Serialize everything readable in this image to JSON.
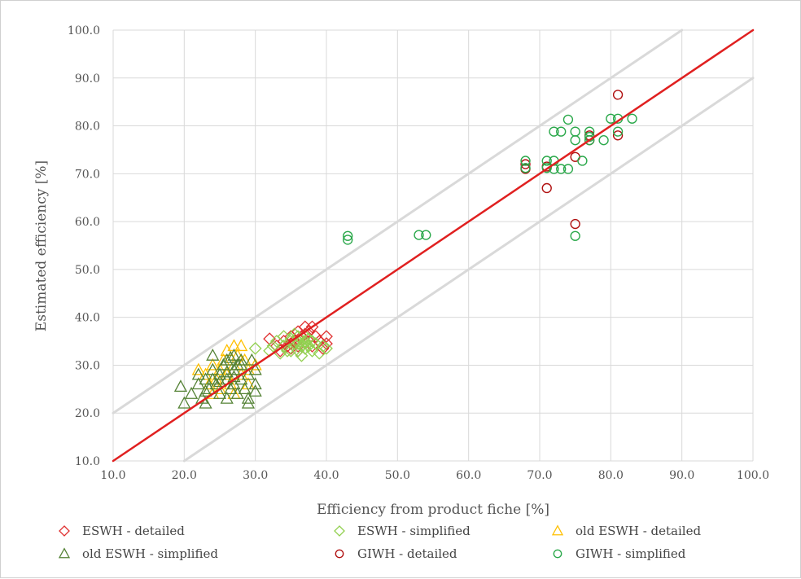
{
  "chart_data": {
    "type": "scatter",
    "title": "",
    "xlabel": "Efficiency from product fiche [%]",
    "ylabel": "Estimated efficiency [%]",
    "xlim": [
      10,
      100
    ],
    "ylim": [
      10,
      100
    ],
    "x_ticks": [
      "10.0",
      "20.0",
      "30.0",
      "40.0",
      "50.0",
      "60.0",
      "70.0",
      "80.0",
      "90.0",
      "100.0"
    ],
    "y_ticks": [
      "10.0",
      "20.0",
      "30.0",
      "40.0",
      "50.0",
      "60.0",
      "70.0",
      "80.0",
      "90.0",
      "100.0"
    ],
    "grid": true,
    "legend_position": "bottom",
    "reference_lines": [
      {
        "name": "identity",
        "color": "#e02020",
        "points": [
          [
            10,
            10
          ],
          [
            100,
            100
          ]
        ]
      },
      {
        "name": "upper-band",
        "color": "#d9d9d9",
        "points": [
          [
            10,
            20
          ],
          [
            90,
            100
          ]
        ]
      },
      {
        "name": "lower-band",
        "color": "#d9d9d9",
        "points": [
          [
            20,
            10
          ],
          [
            100,
            90
          ]
        ]
      }
    ],
    "series": [
      {
        "name": "ESWH - detailed",
        "marker": "diamond",
        "color": "#e03030",
        "points": [
          [
            32,
            35.5
          ],
          [
            33,
            34
          ],
          [
            33.5,
            33
          ],
          [
            34,
            35
          ],
          [
            34.5,
            34
          ],
          [
            35,
            36
          ],
          [
            35,
            33.5
          ],
          [
            35.5,
            35
          ],
          [
            36,
            37
          ],
          [
            36,
            34
          ],
          [
            36.5,
            36
          ],
          [
            37,
            38
          ],
          [
            37,
            35
          ],
          [
            37.5,
            37
          ],
          [
            38,
            38
          ],
          [
            38,
            34
          ],
          [
            38.5,
            36
          ],
          [
            39,
            35
          ],
          [
            39.5,
            33.5
          ],
          [
            40,
            36
          ],
          [
            40,
            34.5
          ],
          [
            36,
            33
          ],
          [
            37,
            36.5
          ],
          [
            35,
            34.5
          ]
        ]
      },
      {
        "name": "ESWH - simplified",
        "marker": "diamond",
        "color": "#92d050",
        "points": [
          [
            30,
            33.5
          ],
          [
            32,
            33
          ],
          [
            32.5,
            34
          ],
          [
            33,
            35
          ],
          [
            33.5,
            32.5
          ],
          [
            34,
            36
          ],
          [
            34,
            34
          ],
          [
            34.5,
            33
          ],
          [
            35,
            35.5
          ],
          [
            35,
            33
          ],
          [
            35.5,
            34.5
          ],
          [
            36,
            35
          ],
          [
            36,
            33
          ],
          [
            36,
            36
          ],
          [
            36.5,
            34
          ],
          [
            37,
            35
          ],
          [
            37,
            33.5
          ],
          [
            37,
            36
          ],
          [
            37.5,
            34
          ],
          [
            38,
            35
          ],
          [
            38,
            33
          ],
          [
            38.5,
            34.5
          ],
          [
            39,
            32.5
          ],
          [
            39.5,
            34
          ],
          [
            40,
            33.5
          ],
          [
            36.5,
            32
          ],
          [
            35.5,
            36.5
          ],
          [
            37.5,
            35.5
          ],
          [
            36,
            34.5
          ],
          [
            37,
            34.5
          ]
        ]
      },
      {
        "name": "old ESWH - detailed",
        "marker": "triangle",
        "color": "#ffc000",
        "points": [
          [
            22,
            29
          ],
          [
            23,
            28
          ],
          [
            23.5,
            26
          ],
          [
            24,
            30
          ],
          [
            24.5,
            27
          ],
          [
            25,
            29
          ],
          [
            25.5,
            31
          ],
          [
            26,
            28
          ],
          [
            26,
            33
          ],
          [
            26.5,
            26
          ],
          [
            27,
            34
          ],
          [
            27,
            30
          ],
          [
            27.5,
            32
          ],
          [
            28,
            34
          ],
          [
            28,
            28
          ],
          [
            28.5,
            31
          ],
          [
            29,
            29
          ],
          [
            30,
            30
          ],
          [
            25,
            25
          ],
          [
            27,
            24
          ],
          [
            24,
            24
          ],
          [
            29,
            26
          ]
        ]
      },
      {
        "name": "old ESWH - simplified",
        "marker": "triangle",
        "color": "#548235",
        "points": [
          [
            19.5,
            25.5
          ],
          [
            20,
            22
          ],
          [
            21,
            24
          ],
          [
            22,
            26
          ],
          [
            22,
            28
          ],
          [
            22.5,
            23
          ],
          [
            23,
            27
          ],
          [
            23,
            22
          ],
          [
            23.5,
            25
          ],
          [
            24,
            32
          ],
          [
            24,
            29
          ],
          [
            24.5,
            26
          ],
          [
            25,
            28
          ],
          [
            25,
            24
          ],
          [
            25.5,
            30
          ],
          [
            26,
            27
          ],
          [
            26,
            23
          ],
          [
            26,
            31
          ],
          [
            26.5,
            25
          ],
          [
            27,
            29
          ],
          [
            27,
            26
          ],
          [
            27,
            32
          ],
          [
            27.5,
            24
          ],
          [
            28,
            30
          ],
          [
            28,
            27
          ],
          [
            28.5,
            25
          ],
          [
            29,
            22
          ],
          [
            29,
            28
          ],
          [
            29.5,
            31
          ],
          [
            30,
            29
          ],
          [
            30,
            26
          ],
          [
            30,
            24.5
          ],
          [
            26,
            28.5
          ],
          [
            27,
            27.5
          ],
          [
            28,
            31
          ],
          [
            25,
            26.5
          ],
          [
            24,
            27
          ],
          [
            23,
            24.5
          ],
          [
            26.5,
            31.5
          ],
          [
            27.5,
            30
          ],
          [
            29,
            23
          ]
        ]
      },
      {
        "name": "GIWH - detailed",
        "marker": "circle",
        "color": "#b01010",
        "points": [
          [
            68,
            71
          ],
          [
            68,
            72
          ],
          [
            71,
            67
          ],
          [
            71,
            71.5
          ],
          [
            75,
            73.5
          ],
          [
            75,
            59.5
          ],
          [
            77,
            77
          ],
          [
            77,
            78
          ],
          [
            81,
            86.5
          ],
          [
            81,
            78
          ]
        ]
      },
      {
        "name": "GIWH - simplified",
        "marker": "circle",
        "color": "#2aa84a",
        "points": [
          [
            43,
            57
          ],
          [
            43,
            56.2
          ],
          [
            53,
            57.2
          ],
          [
            54,
            57.2
          ],
          [
            68,
            72.7
          ],
          [
            68,
            71.2
          ],
          [
            71,
            72.7
          ],
          [
            71,
            71.2
          ],
          [
            72,
            72.7
          ],
          [
            72,
            71
          ],
          [
            72,
            78.8
          ],
          [
            73,
            78.8
          ],
          [
            73,
            71
          ],
          [
            74,
            71
          ],
          [
            74,
            81.3
          ],
          [
            75,
            77
          ],
          [
            75,
            78.8
          ],
          [
            75,
            57
          ],
          [
            76,
            72.7
          ],
          [
            77,
            77
          ],
          [
            77,
            77.7
          ],
          [
            77,
            78.8
          ],
          [
            79,
            77
          ],
          [
            80,
            81.5
          ],
          [
            81,
            81.5
          ],
          [
            81,
            78.8
          ],
          [
            83,
            81.5
          ]
        ]
      }
    ]
  }
}
